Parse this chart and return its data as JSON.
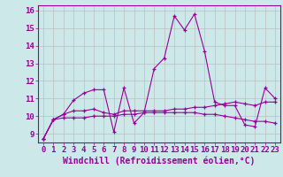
{
  "xlabel": "Windchill (Refroidissement éolien,°C)",
  "bg_color": "#cce8e8",
  "line_color": "#990099",
  "grid_color": "#bbbbbb",
  "xlim": [
    -0.5,
    23.5
  ],
  "ylim": [
    8.5,
    16.3
  ],
  "xticks": [
    0,
    1,
    2,
    3,
    4,
    5,
    6,
    7,
    8,
    9,
    10,
    11,
    12,
    13,
    14,
    15,
    16,
    17,
    18,
    19,
    20,
    21,
    22,
    23
  ],
  "yticks": [
    9,
    10,
    11,
    12,
    13,
    14,
    15,
    16
  ],
  "series": [
    [
      8.7,
      9.8,
      10.1,
      10.9,
      11.3,
      11.5,
      11.5,
      9.1,
      11.6,
      9.6,
      10.2,
      12.7,
      13.3,
      15.7,
      14.9,
      15.8,
      13.7,
      10.8,
      10.6,
      10.6,
      9.5,
      9.4,
      11.6,
      11.0
    ],
    [
      8.7,
      9.8,
      10.1,
      10.3,
      10.3,
      10.4,
      10.2,
      10.1,
      10.3,
      10.3,
      10.3,
      10.3,
      10.3,
      10.4,
      10.4,
      10.5,
      10.5,
      10.6,
      10.7,
      10.8,
      10.7,
      10.6,
      10.8,
      10.8
    ],
    [
      8.7,
      9.8,
      9.9,
      9.9,
      9.9,
      10.0,
      10.0,
      10.0,
      10.1,
      10.1,
      10.2,
      10.2,
      10.2,
      10.2,
      10.2,
      10.2,
      10.1,
      10.1,
      10.0,
      9.9,
      9.8,
      9.7,
      9.7,
      9.6
    ]
  ],
  "xlabel_fontsize": 7,
  "tick_fontsize": 6.5
}
